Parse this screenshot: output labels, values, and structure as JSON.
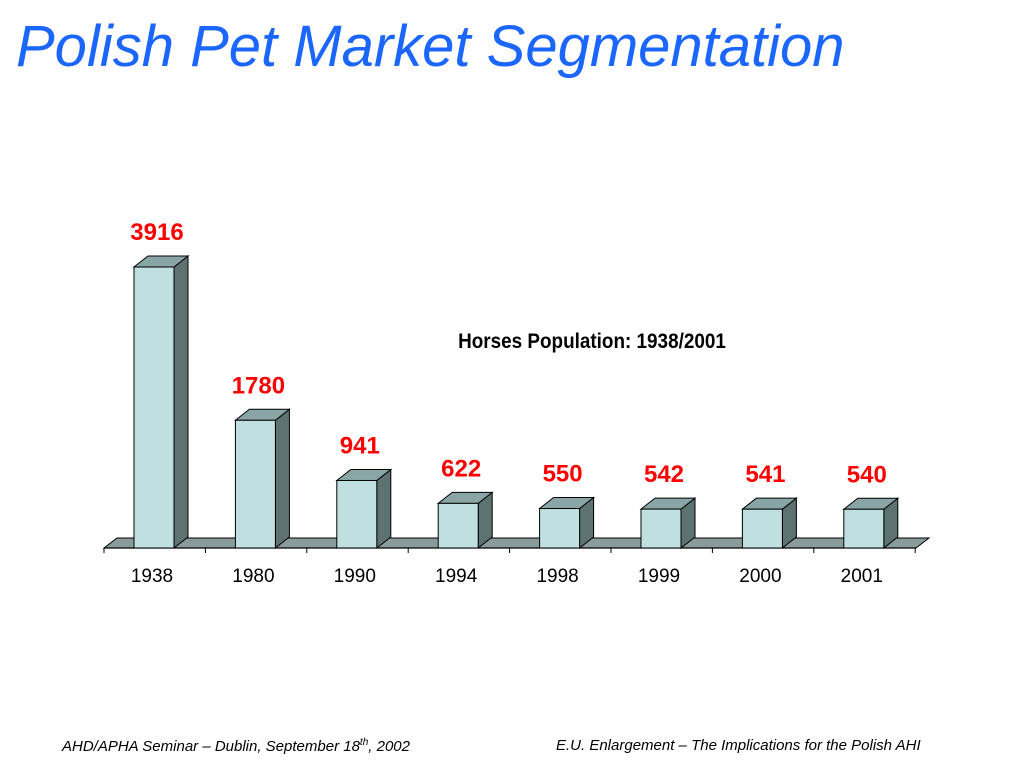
{
  "slide": {
    "title": "Polish Pet Market Segmentation"
  },
  "footer": {
    "left_text": "AHD/APHA Seminar – Dublin, September 18",
    "left_sup": "th",
    "left_suffix": ", 2002",
    "right_text": "E.U. Enlargement – The Implications for the Polish AHI"
  },
  "chart_data": {
    "type": "bar",
    "style": "3d-column",
    "title": "Horses Population: 1938/2001",
    "xlabel": "",
    "ylabel": "",
    "categories": [
      "1938",
      "1980",
      "1990",
      "1994",
      "1998",
      "1999",
      "2000",
      "2001"
    ],
    "values": [
      3916,
      1780,
      941,
      622,
      550,
      542,
      541,
      540
    ],
    "data_labels": [
      "3916",
      "1780",
      "941",
      "622",
      "550",
      "542",
      "541",
      "540"
    ],
    "ylim": [
      0,
      3916
    ],
    "grid": false,
    "legend": "none",
    "colors": {
      "bar_front": "#c0dfe1",
      "bar_top": "#8aa5a6",
      "bar_side": "#5f7272",
      "floor": "#8a9b9b",
      "data_label": "#ff0000",
      "title": "#000000",
      "tick_label": "#000000"
    }
  }
}
